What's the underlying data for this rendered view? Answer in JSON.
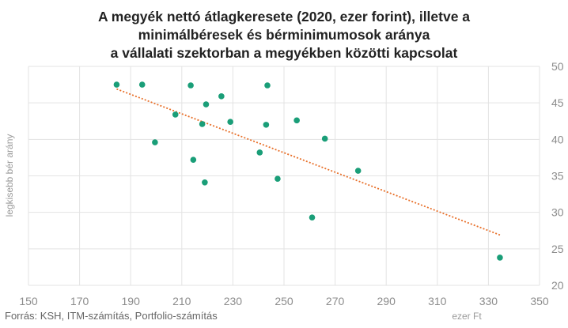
{
  "chart_data": {
    "type": "scatter",
    "title": [
      "A megyék nettó átlagkeresete (2020, ezer forint), illetve a",
      "minimálbéresek és bérminimumosok aránya",
      "a vállalati szektorban a megyékben közötti kapcsolat"
    ],
    "xlabel": "ezer Ft",
    "ylabel": "legkisebb  bér arány",
    "xlim": [
      150,
      350
    ],
    "ylim": [
      20,
      50
    ],
    "xticks": [
      150,
      170,
      190,
      210,
      230,
      250,
      270,
      290,
      310,
      330,
      350
    ],
    "yticks": [
      20,
      25,
      30,
      35,
      40,
      45,
      50
    ],
    "y_axis_side": "right",
    "grid": true,
    "marker_color": "#1a9e78",
    "trend_color": "#e8702a",
    "points": [
      {
        "x": 184.5,
        "y": 47.5
      },
      {
        "x": 194.5,
        "y": 47.5
      },
      {
        "x": 213.5,
        "y": 47.4
      },
      {
        "x": 243.5,
        "y": 47.4
      },
      {
        "x": 225.5,
        "y": 45.9
      },
      {
        "x": 219.5,
        "y": 44.8
      },
      {
        "x": 207.5,
        "y": 43.4
      },
      {
        "x": 218.0,
        "y": 42.1
      },
      {
        "x": 229.0,
        "y": 42.4
      },
      {
        "x": 243.0,
        "y": 42.0
      },
      {
        "x": 255.0,
        "y": 42.6
      },
      {
        "x": 199.5,
        "y": 39.6
      },
      {
        "x": 266.0,
        "y": 40.1
      },
      {
        "x": 240.5,
        "y": 38.2
      },
      {
        "x": 214.5,
        "y": 37.2
      },
      {
        "x": 279.0,
        "y": 35.7
      },
      {
        "x": 219.0,
        "y": 34.1
      },
      {
        "x": 247.5,
        "y": 34.6
      },
      {
        "x": 261.0,
        "y": 29.3
      },
      {
        "x": 334.5,
        "y": 23.8
      }
    ],
    "trendline": {
      "x": [
        184.5,
        334.5
      ],
      "y": [
        46.9,
        26.9
      ]
    }
  },
  "source": "Forrás: KSH, ITM-számítás, Portfolio-számítás"
}
